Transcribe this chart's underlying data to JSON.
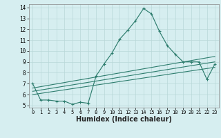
{
  "title": "",
  "xlabel": "Humidex (Indice chaleur)",
  "bg_color": "#d6eef0",
  "grid_color": "#b8d8d8",
  "line_color": "#2e7d6e",
  "xlim": [
    -0.5,
    23.5
  ],
  "ylim": [
    4.8,
    14.3
  ],
  "xticks": [
    0,
    1,
    2,
    3,
    4,
    5,
    6,
    7,
    8,
    9,
    10,
    11,
    12,
    13,
    14,
    15,
    16,
    17,
    18,
    19,
    20,
    21,
    22,
    23
  ],
  "yticks": [
    5,
    6,
    7,
    8,
    9,
    10,
    11,
    12,
    13,
    14
  ],
  "series1_x": [
    0,
    1,
    2,
    3,
    4,
    5,
    6,
    7,
    8,
    9,
    10,
    11,
    12,
    13,
    14,
    15,
    16,
    17,
    18,
    19,
    20,
    21,
    22,
    23
  ],
  "series1_y": [
    7.0,
    5.5,
    5.5,
    5.4,
    5.4,
    5.1,
    5.3,
    5.2,
    7.7,
    8.8,
    9.8,
    11.1,
    11.9,
    12.8,
    13.9,
    13.4,
    11.8,
    10.5,
    9.7,
    9.0,
    9.0,
    9.0,
    7.4,
    8.8
  ],
  "series2_x": [
    0,
    23
  ],
  "series2_y": [
    6.6,
    9.5
  ],
  "series3_x": [
    0,
    23
  ],
  "series3_y": [
    6.3,
    9.0
  ],
  "series4_x": [
    0,
    23
  ],
  "series4_y": [
    6.0,
    8.5
  ],
  "xlabel_fontsize": 7,
  "tick_fontsize": 5,
  "ytick_fontsize": 5.5
}
